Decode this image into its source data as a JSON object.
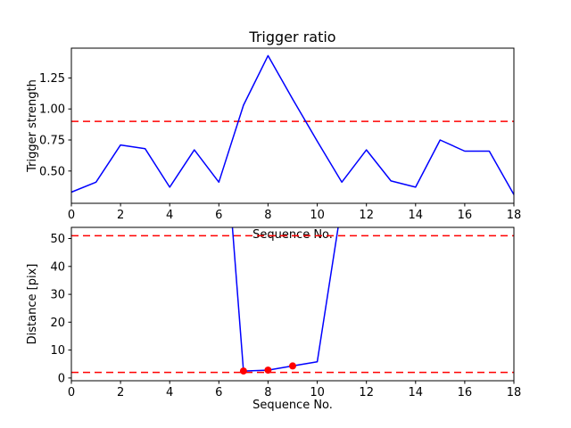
{
  "figure": {
    "background": "#ffffff"
  },
  "chart_data": [
    {
      "id": "trigger-ratio",
      "type": "line",
      "title": "Trigger ratio",
      "xlabel": "Sequence No.",
      "ylabel": "Trigger strength",
      "xlim": [
        0,
        18
      ],
      "ylim": [
        0.24,
        1.49
      ],
      "xticks": [
        0,
        2,
        4,
        6,
        8,
        10,
        12,
        14,
        16,
        18
      ],
      "xtick_labels": [
        "0",
        "2",
        "4",
        "6",
        "8",
        "10",
        "12",
        "14",
        "16",
        "18"
      ],
      "yticks": [
        0.5,
        0.75,
        1.0,
        1.25
      ],
      "ytick_labels": [
        "0.50",
        "0.75",
        "1.00",
        "1.25"
      ],
      "grid": false,
      "x": [
        0,
        1,
        2,
        3,
        4,
        5,
        6,
        7,
        8,
        9,
        10,
        11,
        12,
        13,
        14,
        15,
        16,
        17,
        18
      ],
      "series": [
        {
          "name": "trigger strength",
          "color": "#0000ff",
          "values": [
            0.33,
            0.41,
            0.71,
            0.68,
            0.37,
            0.67,
            0.41,
            1.03,
            1.43,
            1.08,
            0.74,
            0.41,
            0.67,
            0.42,
            0.37,
            0.75,
            0.66,
            0.66,
            0.31
          ]
        }
      ],
      "thresholds": [
        {
          "value": 0.9,
          "color": "#ff0000",
          "style": "dashed"
        }
      ]
    },
    {
      "id": "distance",
      "type": "line",
      "title": "",
      "xlabel": "Sequence No.",
      "ylabel": "Distance [pix]",
      "xlim": [
        0,
        18
      ],
      "ylim": [
        -1,
        54
      ],
      "xticks": [
        0,
        2,
        4,
        6,
        8,
        10,
        12,
        14,
        16,
        18
      ],
      "xtick_labels": [
        "0",
        "2",
        "4",
        "6",
        "8",
        "10",
        "12",
        "14",
        "16",
        "18"
      ],
      "yticks": [
        0,
        10,
        20,
        30,
        40,
        50
      ],
      "ytick_labels": [
        "0",
        "10",
        "20",
        "30",
        "40",
        "50"
      ],
      "grid": false,
      "series": [
        {
          "name": "distance",
          "color": "#0000ff",
          "points": [
            [
              6.55,
              54
            ],
            [
              7,
              2.5
            ],
            [
              8,
              2.8
            ],
            [
              9,
              4.3
            ],
            [
              10,
              5.8
            ],
            [
              10.85,
              54
            ]
          ]
        }
      ],
      "markers": {
        "color": "#ff0000",
        "points": [
          [
            7,
            2.5
          ],
          [
            8,
            2.8
          ],
          [
            9,
            4.3
          ]
        ]
      },
      "thresholds": [
        {
          "value": 51,
          "color": "#ff0000",
          "style": "dashed"
        },
        {
          "value": 2,
          "color": "#ff0000",
          "style": "dashed"
        }
      ]
    }
  ]
}
